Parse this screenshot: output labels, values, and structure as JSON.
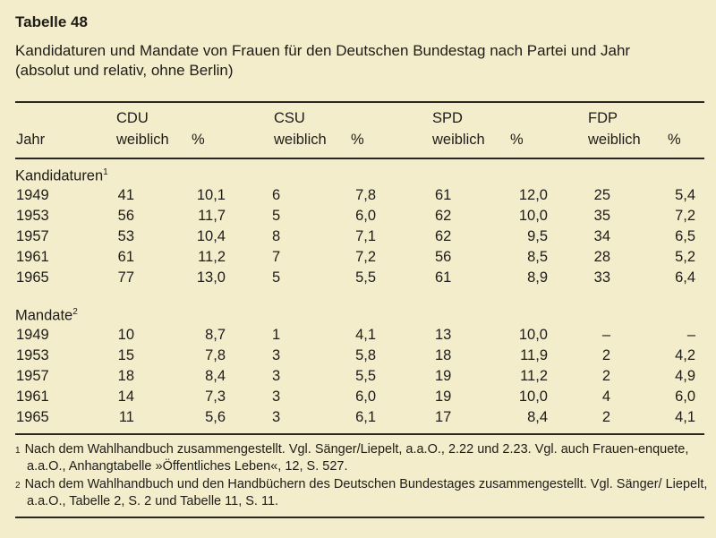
{
  "title": "Tabelle 48",
  "subtitle_line1": "Kandidaturen und Mandate von Frauen für den Deutschen Bundestag nach Partei und Jahr",
  "subtitle_line2": "(absolut und relativ, ohne Berlin)",
  "header": {
    "year": "Jahr",
    "parties": [
      "CDU",
      "CSU",
      "SPD",
      "FDP"
    ],
    "female": "weiblich",
    "percent": "%"
  },
  "sections": [
    {
      "label": "Kandidaturen",
      "footnote_mark": "1",
      "rows": [
        [
          "1949",
          "41",
          "10,1",
          "6",
          "7,8",
          "61",
          "12,0",
          "25",
          "5,4"
        ],
        [
          "1953",
          "56",
          "11,7",
          "5",
          "6,0",
          "62",
          "10,0",
          "35",
          "7,2"
        ],
        [
          "1957",
          "53",
          "10,4",
          "8",
          "7,1",
          "62",
          "9,5",
          "34",
          "6,5"
        ],
        [
          "1961",
          "61",
          "11,2",
          "7",
          "7,2",
          "56",
          "8,5",
          "28",
          "5,2"
        ],
        [
          "1965",
          "77",
          "13,0",
          "5",
          "5,5",
          "61",
          "8,9",
          "33",
          "6,4"
        ]
      ]
    },
    {
      "label": "Mandate",
      "footnote_mark": "2",
      "rows": [
        [
          "1949",
          "10",
          "8,7",
          "1",
          "4,1",
          "13",
          "10,0",
          "–",
          "–"
        ],
        [
          "1953",
          "15",
          "7,8",
          "3",
          "5,8",
          "18",
          "11,9",
          "2",
          "4,2"
        ],
        [
          "1957",
          "18",
          "8,4",
          "3",
          "5,5",
          "19",
          "11,2",
          "2",
          "4,9"
        ],
        [
          "1961",
          "14",
          "7,3",
          "3",
          "6,0",
          "19",
          "10,0",
          "4",
          "6,0"
        ],
        [
          "1965",
          "11",
          "5,6",
          "3",
          "6,1",
          "17",
          "8,4",
          "2",
          "4,1"
        ]
      ]
    }
  ],
  "footnotes": [
    {
      "mark": "1",
      "text": "Nach dem Wahlhandbuch zusammengestellt. Vgl. Sänger/Liepelt, a.a.O., 2.22 und 2.23. Vgl. auch Frauen-enquete, a.a.O., Anhangtabelle »Öffentliches Leben«, 12, S. 527."
    },
    {
      "mark": "2",
      "text": "Nach dem Wahlhandbuch und den Handbüchern des Deutschen Bundestages zusammengestellt. Vgl. Sänger/ Liepelt, a.a.O., Tabelle 2, S. 2 und Tabelle 11, S. 11."
    }
  ]
}
